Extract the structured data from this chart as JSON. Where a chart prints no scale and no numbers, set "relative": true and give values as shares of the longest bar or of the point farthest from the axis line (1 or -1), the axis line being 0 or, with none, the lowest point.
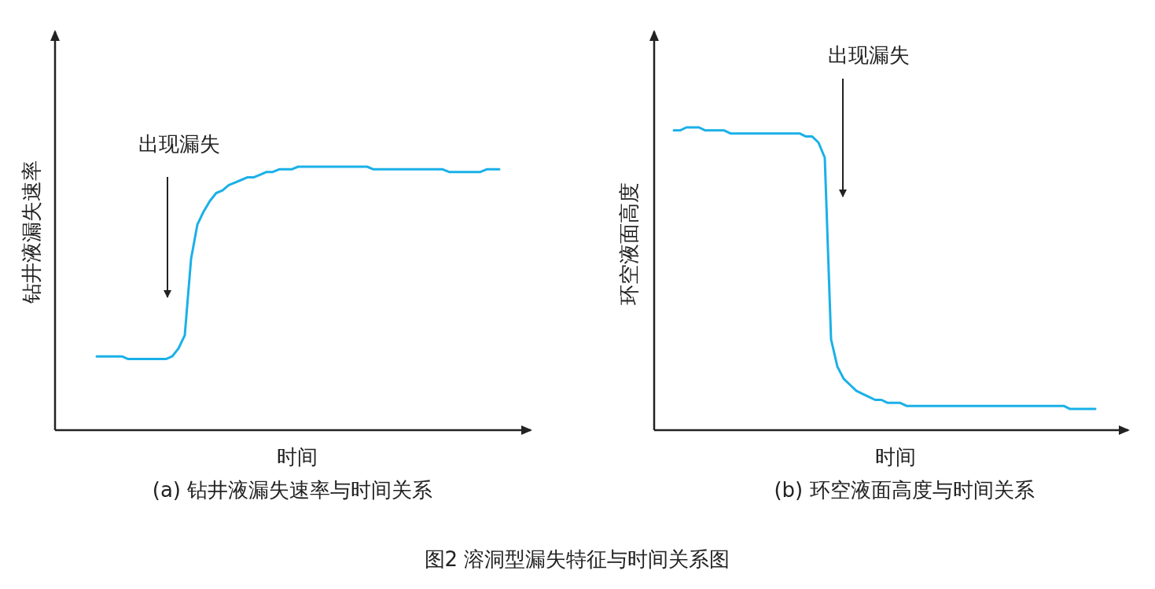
{
  "chart_data": [
    {
      "type": "line",
      "relative": true,
      "title": "(a) 钻井液漏失速率与时间关系",
      "xlabel": "时间",
      "ylabel": "钻井液漏失速率",
      "annotations": [
        "出现漏失"
      ],
      "color": "#1ab0e8",
      "categories": [
        null,
        null,
        null,
        null,
        null,
        null,
        null,
        null,
        null,
        null,
        null,
        null,
        null,
        null,
        null,
        null,
        null,
        null,
        null,
        null,
        null,
        null,
        null,
        null,
        null,
        null,
        null,
        null,
        null,
        null,
        null,
        null,
        null,
        null,
        null,
        null,
        null,
        null,
        null,
        null,
        null,
        null,
        null,
        null,
        null,
        null,
        null,
        null,
        null,
        null,
        null,
        null,
        null,
        null,
        null,
        null,
        null,
        null,
        null,
        null,
        null,
        null,
        null,
        null,
        null
      ],
      "values": [
        0.28,
        0.28,
        0.28,
        0.28,
        0.28,
        0.27,
        0.27,
        0.27,
        0.27,
        0.27,
        0.27,
        0.27,
        0.28,
        0.31,
        0.36,
        0.65,
        0.78,
        0.83,
        0.87,
        0.9,
        0.91,
        0.93,
        0.94,
        0.95,
        0.96,
        0.96,
        0.97,
        0.98,
        0.98,
        0.99,
        0.99,
        0.99,
        1.0,
        1.0,
        1.0,
        1.0,
        1.0,
        1.0,
        1.0,
        1.0,
        1.0,
        1.0,
        1.0,
        1.0,
        0.99,
        0.99,
        0.99,
        0.99,
        0.99,
        0.99,
        0.99,
        0.99,
        0.99,
        0.99,
        0.99,
        0.99,
        0.98,
        0.98,
        0.98,
        0.98,
        0.98,
        0.98,
        0.99,
        0.99,
        0.99
      ]
    },
    {
      "type": "line",
      "relative": true,
      "title": "(b) 环空液面高度与时间关系",
      "xlabel": "时间",
      "ylabel": "环空液面高度",
      "annotations": [
        "出现漏失",
        "图2  溶洞型漏失特征与时间关系图"
      ],
      "color": "#1ab0e8",
      "categories": [
        null,
        null,
        null,
        null,
        null,
        null,
        null,
        null,
        null,
        null,
        null,
        null,
        null,
        null,
        null,
        null,
        null,
        null,
        null,
        null,
        null,
        null,
        null,
        null,
        null,
        null,
        null,
        null,
        null,
        null,
        null,
        null,
        null,
        null,
        null,
        null,
        null,
        null,
        null,
        null,
        null,
        null,
        null,
        null,
        null,
        null,
        null,
        null,
        null,
        null,
        null,
        null,
        null,
        null,
        null,
        null,
        null,
        null,
        null,
        null,
        null,
        null,
        null,
        null,
        null,
        null,
        null,
        null
      ],
      "values": [
        0.99,
        0.99,
        1.0,
        1.0,
        1.0,
        0.99,
        0.99,
        0.99,
        0.99,
        0.98,
        0.98,
        0.98,
        0.98,
        0.98,
        0.98,
        0.98,
        0.98,
        0.98,
        0.98,
        0.98,
        0.98,
        0.97,
        0.97,
        0.95,
        0.9,
        0.3,
        0.21,
        0.17,
        0.15,
        0.13,
        0.12,
        0.11,
        0.1,
        0.1,
        0.09,
        0.09,
        0.09,
        0.08,
        0.08,
        0.08,
        0.08,
        0.08,
        0.08,
        0.08,
        0.08,
        0.08,
        0.08,
        0.08,
        0.08,
        0.08,
        0.08,
        0.08,
        0.08,
        0.08,
        0.08,
        0.08,
        0.08,
        0.08,
        0.08,
        0.08,
        0.08,
        0.08,
        0.08,
        0.07,
        0.07,
        0.07,
        0.07,
        0.07
      ]
    }
  ]
}
